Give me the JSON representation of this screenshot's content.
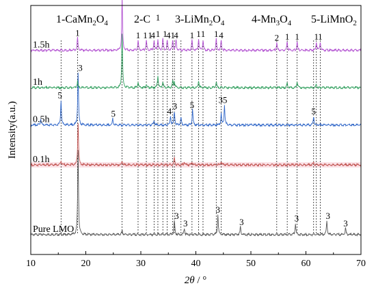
{
  "chart_data": {
    "type": "line",
    "xlabel_var": "2θ",
    "xlabel_unit": "°",
    "xlabel_sep": " / ",
    "ylabel": "Intensity(a.u.)",
    "xlim": [
      10,
      70
    ],
    "ylim": [
      0,
      100
    ],
    "xticks": [
      10,
      20,
      30,
      40,
      50,
      60,
      70
    ],
    "phase_legend": [
      {
        "text": "1-CaMn",
        "sub": "2",
        "rest": "O",
        "sub2": "4"
      },
      {
        "text": "2-C",
        "sub": "",
        "rest": "",
        "sub2": ""
      },
      {
        "text": "3-LiMn",
        "sub": "2",
        "rest": "O",
        "sub2": "4"
      },
      {
        "text": "4-Mn",
        "sub": "3",
        "rest": "O",
        "sub2": "4"
      },
      {
        "text": "5-LiMnO",
        "sub": "2",
        "rest": "",
        "sub2": ""
      }
    ],
    "reference_lines": [
      15.5,
      18.5,
      26.6,
      29.5,
      31,
      32.4,
      33.1,
      34,
      34.8,
      35.8,
      36.1,
      37.3,
      39.3,
      40.5,
      41.3,
      43.7,
      44.6,
      54.7,
      56.6,
      58.4,
      61.4,
      61.9,
      62.6
    ],
    "series": [
      {
        "name": "Pure LMO",
        "color": "#555555",
        "baseline": 8,
        "peaks": [
          [
            18.6,
            34
          ],
          [
            26.6,
            1.5
          ],
          [
            36.1,
            5.5
          ],
          [
            37.9,
            2.5
          ],
          [
            44.0,
            8
          ],
          [
            48.1,
            3
          ],
          [
            58.1,
            4.5
          ],
          [
            63.8,
            5.5
          ],
          [
            67.2,
            2.5
          ]
        ],
        "labels": [
          {
            "x": 36.5,
            "text": "3"
          },
          {
            "x": 38.1,
            "text": "3"
          },
          {
            "x": 44.0,
            "text": "3"
          },
          {
            "x": 48.3,
            "text": "3"
          },
          {
            "x": 58.3,
            "text": "3"
          },
          {
            "x": 64.0,
            "text": "3"
          },
          {
            "x": 67.2,
            "text": "3"
          }
        ]
      },
      {
        "name": "0.1h",
        "color": "#c0504d",
        "baseline": 36,
        "band": "#fbe3e8",
        "peaks": [
          [
            15.5,
            1.5
          ],
          [
            18.6,
            17
          ],
          [
            26.6,
            1.5
          ],
          [
            36.1,
            3
          ],
          [
            37.9,
            1.2
          ],
          [
            39.3,
            1
          ],
          [
            44.6,
            1.5
          ],
          [
            61.4,
            1
          ]
        ],
        "labels": []
      },
      {
        "name": "0.5h",
        "color": "#2f66c8",
        "baseline": 52,
        "peaks": [
          [
            11.8,
            2.5
          ],
          [
            15.5,
            10
          ],
          [
            18.6,
            21
          ],
          [
            24.9,
            2.5
          ],
          [
            32.4,
            2
          ],
          [
            35.4,
            3.5
          ],
          [
            36.1,
            5.5
          ],
          [
            37.3,
            3
          ],
          [
            39.4,
            6
          ],
          [
            44.6,
            4.5
          ],
          [
            45.2,
            8
          ],
          [
            61.4,
            3.5
          ]
        ],
        "labels": [
          {
            "x": 15.3,
            "text": "5"
          },
          {
            "x": 19.0,
            "text": "3"
          },
          {
            "x": 25.0,
            "text": "5"
          },
          {
            "x": 35.2,
            "text": "4"
          },
          {
            "x": 36.2,
            "text": "3"
          },
          {
            "x": 39.3,
            "text": "5"
          },
          {
            "x": 44.5,
            "text": "3"
          },
          {
            "x": 45.3,
            "text": "5"
          },
          {
            "x": 61.4,
            "text": "5"
          }
        ]
      },
      {
        "name": "1h",
        "color": "#2f9e5c",
        "baseline": 67,
        "peaks": [
          [
            18.5,
            2.5
          ],
          [
            26.6,
            22
          ],
          [
            29.5,
            2.5
          ],
          [
            31.0,
            1.5
          ],
          [
            33.1,
            5
          ],
          [
            34.0,
            2.5
          ],
          [
            35.8,
            2.5
          ],
          [
            36.1,
            2.5
          ],
          [
            40.5,
            3
          ],
          [
            43.7,
            2.5
          ],
          [
            56.6,
            2
          ],
          [
            58.4,
            2.5
          ],
          [
            61.9,
            1.5
          ]
        ],
        "labels": []
      },
      {
        "name": "1.5h",
        "color": "#b14fd0",
        "baseline": 82,
        "peaks": [
          [
            18.5,
            5
          ],
          [
            26.6,
            21
          ],
          [
            29.5,
            4
          ],
          [
            31.0,
            4
          ],
          [
            32.4,
            4
          ],
          [
            33.1,
            4.5
          ],
          [
            34.0,
            4.5
          ],
          [
            34.8,
            4
          ],
          [
            35.8,
            4
          ],
          [
            36.4,
            4
          ],
          [
            39.3,
            4
          ],
          [
            40.5,
            4.5
          ],
          [
            41.3,
            4
          ],
          [
            43.7,
            4.5
          ],
          [
            44.6,
            4
          ],
          [
            54.7,
            3
          ],
          [
            56.6,
            3.5
          ],
          [
            58.4,
            3.5
          ],
          [
            61.9,
            3.5
          ],
          [
            62.6,
            3.5
          ]
        ],
        "labels": [
          {
            "x": 18.5,
            "text": "1"
          },
          {
            "x": 26.6,
            "text": "2"
          },
          {
            "x": 29.5,
            "text": "1"
          },
          {
            "x": 30.8,
            "text": "1"
          },
          {
            "x": 31.7,
            "text": "1"
          },
          {
            "x": 32.2,
            "text": "4"
          },
          {
            "x": 33.1,
            "text": "1"
          },
          {
            "x": 34.4,
            "text": "1"
          },
          {
            "x": 35.0,
            "text": "4"
          },
          {
            "x": 35.8,
            "text": "1"
          },
          {
            "x": 36.4,
            "text": "4"
          },
          {
            "x": 39.3,
            "text": "1"
          },
          {
            "x": 40.5,
            "text": "1"
          },
          {
            "x": 41.3,
            "text": "1"
          },
          {
            "x": 43.7,
            "text": "1"
          },
          {
            "x": 44.6,
            "text": "4"
          },
          {
            "x": 54.7,
            "text": "2"
          },
          {
            "x": 56.6,
            "text": "1"
          },
          {
            "x": 58.4,
            "text": "1"
          },
          {
            "x": 61.9,
            "text": "1"
          },
          {
            "x": 62.6,
            "text": "1"
          }
        ]
      }
    ],
    "extra_labels": [
      {
        "x": 33.1,
        "y": 94,
        "text": "1"
      }
    ]
  }
}
